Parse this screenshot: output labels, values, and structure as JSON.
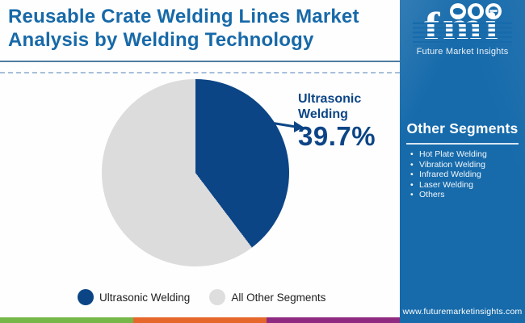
{
  "header": {
    "title": "Reusable Crate Welding Lines Market Analysis by Welding Technology"
  },
  "logo": {
    "text": "fmi",
    "subtitle": "Future Market Insights",
    "badge_icons": [
      "americas-map-icon",
      "europe-africa-map-icon",
      "globe-icon"
    ]
  },
  "sidebar": {
    "heading": "Other Segments",
    "items": [
      "Hot Plate Welding",
      "Vibration Welding",
      "Infrared Welding",
      "Laser Welding",
      "Others"
    ],
    "website": "www.futuremarketinsights.com"
  },
  "chart": {
    "callout_label": "Ultrasonic Welding",
    "callout_value": "39.7%",
    "callout_arrow": "right-arrow-icon"
  },
  "legend": [
    {
      "label": "Ultrasonic Welding",
      "color": "#0C4586"
    },
    {
      "label": "All Other Segments",
      "color": "#DEDEDE"
    }
  ],
  "chart_data": {
    "type": "pie",
    "title": "Reusable Crate Welding Lines Market Analysis by Welding Technology",
    "segments": [
      {
        "label": "Ultrasonic Welding",
        "value": 39.7,
        "color": "#0C4586"
      },
      {
        "label": "All Other Segments",
        "value": 60.3,
        "color": "#DCDCDC"
      }
    ],
    "start_angle_deg": 0,
    "direction": "clockwise",
    "legend_position": "bottom",
    "annotation": {
      "label": "Ultrasonic Welding",
      "value": "39.7%"
    }
  },
  "colors": {
    "sidebar_blue": "#176BAB",
    "pie_blue": "#0C4586",
    "pie_gray": "#DCDCDC",
    "title_blue": "#1769A8",
    "divider_blue": "#4F7DA0",
    "stripe_green": "#76B74A",
    "stripe_orange": "#E5672B",
    "stripe_purple": "#8E2B80"
  }
}
